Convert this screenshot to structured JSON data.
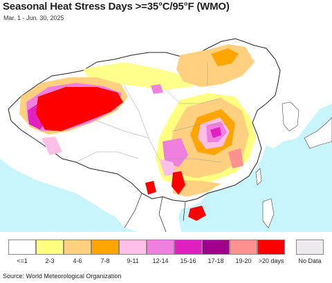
{
  "title": "Seasonal Heat Stress Days >=35°C/95°F (WMO)",
  "subtitle": "Mar. 1 - Jun. 30, 2025",
  "source": "Source: World Meteorological Organization",
  "colors": {
    "ocean": "#c7f5fb",
    "land": "#ffffff",
    "outside_land": "#ffffff",
    "border": "#222222",
    "province": "#aaaaaa"
  },
  "legend": [
    {
      "label": "<=1",
      "color": "#ffffff"
    },
    {
      "label": "2-3",
      "color": "#ffff80"
    },
    {
      "label": "4-6",
      "color": "#ffd080"
    },
    {
      "label": "7-8",
      "color": "#ffa500"
    },
    {
      "label": "9-11",
      "color": "#ffc0e8"
    },
    {
      "label": "12-14",
      "color": "#f080e0"
    },
    {
      "label": "15-16",
      "color": "#e020c0"
    },
    {
      "label": "17-18",
      "color": "#a0008a"
    },
    {
      "label": "19-20",
      "color": "#ff9090"
    },
    {
      "label": ">20 days",
      "color": "#ff0000"
    }
  ],
  "no_data": {
    "label": "No Data",
    "color": "#eeeaf0"
  }
}
